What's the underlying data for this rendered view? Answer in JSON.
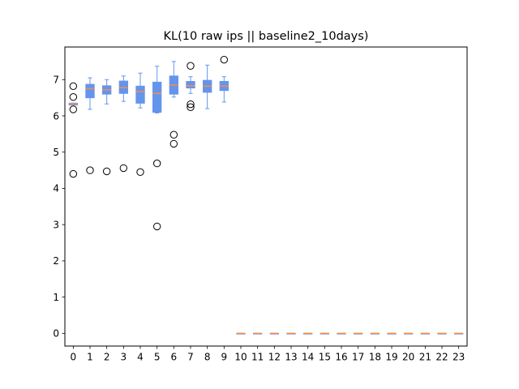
{
  "chart_data": {
    "type": "boxplot",
    "title": "KL(10 raw ips || baseline2_10days)",
    "xlabel": "",
    "ylabel": "",
    "categories": [
      "0",
      "1",
      "2",
      "3",
      "4",
      "5",
      "6",
      "7",
      "8",
      "9",
      "10",
      "11",
      "12",
      "13",
      "14",
      "15",
      "16",
      "17",
      "18",
      "19",
      "20",
      "21",
      "22",
      "23"
    ],
    "yticks": [
      0,
      1,
      2,
      3,
      4,
      5,
      6,
      7
    ],
    "ylim": [
      -0.35,
      7.9
    ],
    "grid": false,
    "colors": {
      "box_fill": "#6495ed",
      "whisker": "#6495ed",
      "median": "#ff8c3a",
      "flier_edge": "#000000"
    },
    "boxes": [
      {
        "category": "0",
        "whislo": 6.3,
        "q1": 6.3,
        "median": 6.33,
        "q3": 6.35,
        "whishi": 6.35,
        "fliers": [
          6.82,
          6.52,
          6.18,
          4.4
        ]
      },
      {
        "category": "1",
        "whislo": 6.18,
        "q1": 6.5,
        "median": 6.75,
        "q3": 6.87,
        "whishi": 7.05,
        "fliers": [
          4.5
        ]
      },
      {
        "category": "2",
        "whislo": 6.33,
        "q1": 6.6,
        "median": 6.72,
        "q3": 6.83,
        "whishi": 7.0,
        "fliers": [
          4.47
        ]
      },
      {
        "category": "3",
        "whislo": 6.4,
        "q1": 6.62,
        "median": 6.78,
        "q3": 6.96,
        "whishi": 7.1,
        "fliers": [
          4.56
        ]
      },
      {
        "category": "4",
        "whislo": 6.22,
        "q1": 6.35,
        "median": 6.67,
        "q3": 6.82,
        "whishi": 7.18,
        "fliers": [
          4.45
        ]
      },
      {
        "category": "5",
        "whislo": 6.08,
        "q1": 6.1,
        "median": 6.62,
        "q3": 6.93,
        "whishi": 7.37,
        "fliers": [
          4.69,
          2.95
        ]
      },
      {
        "category": "6",
        "whislo": 6.52,
        "q1": 6.6,
        "median": 6.85,
        "q3": 7.1,
        "whishi": 7.5,
        "fliers": [
          5.48,
          5.23
        ]
      },
      {
        "category": "7",
        "whislo": 6.62,
        "q1": 6.77,
        "median": 6.83,
        "q3": 6.95,
        "whishi": 7.08,
        "fliers": [
          7.38,
          6.32,
          6.24
        ]
      },
      {
        "category": "8",
        "whislo": 6.2,
        "q1": 6.65,
        "median": 6.82,
        "q3": 6.98,
        "whishi": 7.4,
        "fliers": []
      },
      {
        "category": "9",
        "whislo": 6.38,
        "q1": 6.7,
        "median": 6.82,
        "q3": 6.95,
        "whishi": 7.08,
        "fliers": [
          7.55
        ]
      },
      {
        "category": "10",
        "whislo": 0,
        "q1": 0,
        "median": 0,
        "q3": 0,
        "whishi": 0,
        "fliers": []
      },
      {
        "category": "11",
        "whislo": 0,
        "q1": 0,
        "median": 0,
        "q3": 0,
        "whishi": 0,
        "fliers": []
      },
      {
        "category": "12",
        "whislo": 0,
        "q1": 0,
        "median": 0,
        "q3": 0,
        "whishi": 0,
        "fliers": []
      },
      {
        "category": "13",
        "whislo": 0,
        "q1": 0,
        "median": 0,
        "q3": 0,
        "whishi": 0,
        "fliers": []
      },
      {
        "category": "14",
        "whislo": 0,
        "q1": 0,
        "median": 0,
        "q3": 0,
        "whishi": 0,
        "fliers": []
      },
      {
        "category": "15",
        "whislo": 0,
        "q1": 0,
        "median": 0,
        "q3": 0,
        "whishi": 0,
        "fliers": []
      },
      {
        "category": "16",
        "whislo": 0,
        "q1": 0,
        "median": 0,
        "q3": 0,
        "whishi": 0,
        "fliers": []
      },
      {
        "category": "17",
        "whislo": 0,
        "q1": 0,
        "median": 0,
        "q3": 0,
        "whishi": 0,
        "fliers": []
      },
      {
        "category": "18",
        "whislo": 0,
        "q1": 0,
        "median": 0,
        "q3": 0,
        "whishi": 0,
        "fliers": []
      },
      {
        "category": "19",
        "whislo": 0,
        "q1": 0,
        "median": 0,
        "q3": 0,
        "whishi": 0,
        "fliers": []
      },
      {
        "category": "20",
        "whislo": 0,
        "q1": 0,
        "median": 0,
        "q3": 0,
        "whishi": 0,
        "fliers": []
      },
      {
        "category": "21",
        "whislo": 0,
        "q1": 0,
        "median": 0,
        "q3": 0,
        "whishi": 0,
        "fliers": []
      },
      {
        "category": "22",
        "whislo": 0,
        "q1": 0,
        "median": 0,
        "q3": 0,
        "whishi": 0,
        "fliers": []
      },
      {
        "category": "23",
        "whislo": 0,
        "q1": 0,
        "median": 0,
        "q3": 0,
        "whishi": 0,
        "fliers": []
      }
    ]
  }
}
